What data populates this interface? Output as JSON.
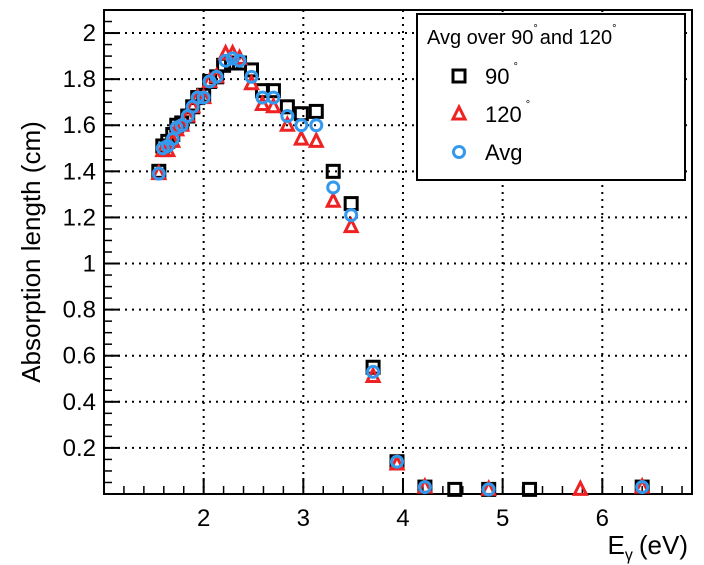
{
  "chart_data": {
    "type": "scatter",
    "title": "",
    "xlabel": "E",
    "xlabel_subscript": "γ",
    "xlabel_unit": "(eV)",
    "ylabel": "Absorption length (cm)",
    "xlim": [
      1.0,
      6.9
    ],
    "ylim": [
      0.0,
      2.1
    ],
    "x_ticks": [
      2,
      3,
      4,
      5,
      6
    ],
    "x_tick_labels": [
      "2",
      "3",
      "4",
      "5",
      "6"
    ],
    "y_ticks": [
      0.2,
      0.4,
      0.6,
      0.8,
      1.0,
      1.2,
      1.4,
      1.6,
      1.8,
      2.0
    ],
    "y_tick_labels": [
      "0.2",
      "0.4",
      "0.6",
      "0.8",
      "1",
      "1.2",
      "1.4",
      "1.6",
      "1.8",
      "2"
    ],
    "grid": true,
    "legend_position": "top-right",
    "legend": {
      "title": "Avg over 90",
      "title_part2": "and 120",
      "degree_mark": "°"
    },
    "series": [
      {
        "name": "90",
        "name_suffix": "°",
        "marker": "open-square",
        "color": "#000000",
        "x": [
          1.55,
          1.59,
          1.64,
          1.69,
          1.73,
          1.78,
          1.84,
          1.89,
          1.94,
          2.0,
          2.06,
          2.13,
          2.2,
          2.28,
          2.36,
          2.48,
          2.59,
          2.7,
          2.84,
          2.98,
          3.13,
          3.3,
          3.48,
          3.7,
          3.94,
          4.22,
          4.52,
          4.86,
          5.27,
          6.4
        ],
        "y": [
          1.4,
          1.51,
          1.53,
          1.56,
          1.6,
          1.61,
          1.64,
          1.68,
          1.72,
          1.73,
          1.79,
          1.81,
          1.86,
          1.87,
          1.87,
          1.84,
          1.75,
          1.75,
          1.68,
          1.65,
          1.66,
          1.4,
          1.26,
          0.55,
          0.14,
          0.03,
          0.02,
          0.02,
          0.02,
          0.03
        ]
      },
      {
        "name": "120",
        "name_suffix": "°",
        "marker": "open-triangle",
        "color": "#ee2222",
        "x": [
          1.55,
          1.59,
          1.64,
          1.69,
          1.73,
          1.78,
          1.84,
          1.89,
          1.94,
          2.0,
          2.06,
          2.13,
          2.22,
          2.29,
          2.36,
          2.48,
          2.59,
          2.7,
          2.84,
          2.98,
          3.13,
          3.3,
          3.48,
          3.7,
          3.94,
          4.22,
          4.86,
          5.78,
          6.4
        ],
        "y": [
          1.39,
          1.49,
          1.49,
          1.53,
          1.58,
          1.6,
          1.64,
          1.68,
          1.72,
          1.72,
          1.79,
          1.81,
          1.91,
          1.91,
          1.89,
          1.78,
          1.69,
          1.68,
          1.6,
          1.54,
          1.53,
          1.27,
          1.16,
          0.51,
          0.13,
          0.03,
          0.02,
          0.02,
          0.03
        ]
      },
      {
        "name": "Avg",
        "marker": "open-circle",
        "color": "#3399ee",
        "x": [
          1.55,
          1.59,
          1.64,
          1.69,
          1.73,
          1.78,
          1.84,
          1.89,
          1.94,
          2.0,
          2.06,
          2.13,
          2.22,
          2.29,
          2.36,
          2.48,
          2.59,
          2.7,
          2.84,
          2.98,
          3.13,
          3.3,
          3.48,
          3.7,
          3.94,
          4.22,
          4.86,
          6.4
        ],
        "y": [
          1.39,
          1.5,
          1.51,
          1.54,
          1.59,
          1.6,
          1.64,
          1.68,
          1.72,
          1.72,
          1.79,
          1.81,
          1.88,
          1.89,
          1.88,
          1.81,
          1.72,
          1.72,
          1.64,
          1.6,
          1.6,
          1.33,
          1.21,
          0.53,
          0.14,
          0.03,
          0.02,
          0.03
        ]
      }
    ]
  }
}
